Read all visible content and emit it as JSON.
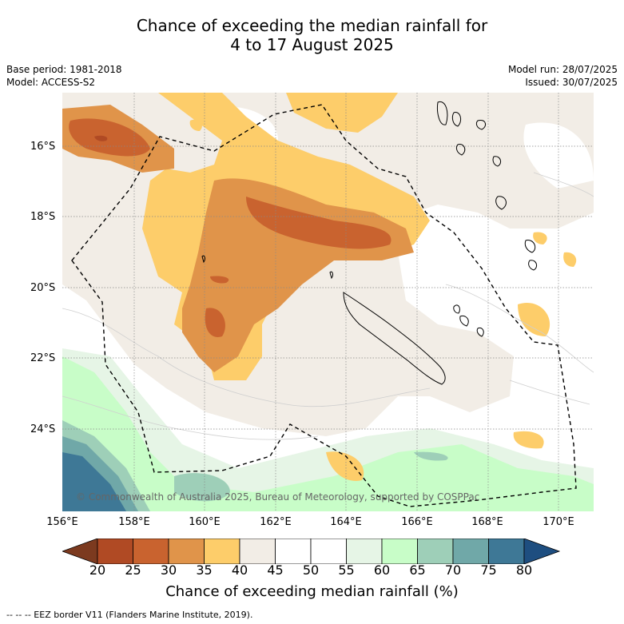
{
  "title_line1": "Chance of exceeding the median rainfall for",
  "title_line2": "4 to 17 August 2025",
  "base_period": "Base period: 1981-2018",
  "model": "Model: ACCESS-S2",
  "model_run": "Model run: 28/07/2025",
  "issued": "Issued: 30/07/2025",
  "credit": "© Commonwealth of Australia 2025, Bureau of Meteorology, supported by COSPPac",
  "lat_labels": [
    "16°S",
    "18°S",
    "20°S",
    "22°S",
    "24°S"
  ],
  "lon_labels": [
    "156°E",
    "158°E",
    "160°E",
    "162°E",
    "164°E",
    "166°E",
    "168°E",
    "170°E"
  ],
  "colorbar": {
    "ticks": [
      "20",
      "25",
      "30",
      "35",
      "40",
      "45",
      "50",
      "55",
      "60",
      "65",
      "70",
      "75",
      "80"
    ],
    "colors": [
      "#7c3a1f",
      "#b04a24",
      "#c9632f",
      "#e0944a",
      "#fdcd6a",
      "#f2ede6",
      "#ffffff",
      "#ffffff",
      "#e6f5e6",
      "#c8fdc8",
      "#9ecfb8",
      "#70a8a8",
      "#3e7896",
      "#1e4e80"
    ],
    "label": "Chance of exceeding median rainfall (%)"
  },
  "footer": "--  --  -- EEZ border V11 (Flanders Marine Institute, 2019)."
}
